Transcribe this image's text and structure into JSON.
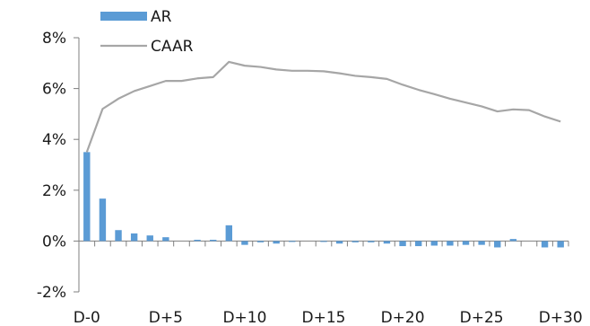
{
  "chart_data": {
    "type": "bar+line",
    "title": "",
    "xlabel": "",
    "ylabel": "",
    "ylim": [
      -0.02,
      0.08
    ],
    "y_ticks": [
      -0.02,
      0,
      0.02,
      0.04,
      0.06,
      0.08
    ],
    "y_tick_labels": [
      "-2%",
      "0%",
      "2%",
      "4%",
      "6%",
      "8%"
    ],
    "x_categories": [
      "D-0",
      "D+1",
      "D+2",
      "D+3",
      "D+4",
      "D+5",
      "D+6",
      "D+7",
      "D+8",
      "D+9",
      "D+10",
      "D+11",
      "D+12",
      "D+13",
      "D+14",
      "D+15",
      "D+16",
      "D+17",
      "D+18",
      "D+19",
      "D+20",
      "D+21",
      "D+22",
      "D+23",
      "D+24",
      "D+25",
      "D+26",
      "D+27",
      "D+28",
      "D+29",
      "D+30"
    ],
    "x_tick_labels": [
      "D-0",
      "D+5",
      "D+10",
      "D+15",
      "D+20",
      "D+25",
      "D+30"
    ],
    "legend_position": "top-left",
    "grid": false,
    "series": [
      {
        "name": "AR",
        "kind": "bar",
        "color": "#5b9bd5",
        "values": [
          0.035,
          0.0167,
          0.0043,
          0.003,
          0.0022,
          0.0015,
          0.0,
          0.0005,
          0.0005,
          0.0062,
          -0.0015,
          -0.0005,
          -0.001,
          -0.0003,
          0.0,
          -0.0002,
          -0.001,
          -0.0005,
          -0.0005,
          -0.001,
          -0.002,
          -0.002,
          -0.0018,
          -0.0018,
          -0.0015,
          -0.0015,
          -0.0025,
          0.0008,
          0.0,
          -0.0025,
          -0.0025
        ]
      },
      {
        "name": "CAAR",
        "kind": "line",
        "color": "#a6a6a6",
        "values": [
          0.035,
          0.052,
          0.056,
          0.059,
          0.061,
          0.063,
          0.063,
          0.064,
          0.0645,
          0.0705,
          0.069,
          0.0685,
          0.0675,
          0.067,
          0.067,
          0.0668,
          0.066,
          0.065,
          0.0645,
          0.0638,
          0.0615,
          0.0595,
          0.0578,
          0.056,
          0.0545,
          0.053,
          0.051,
          0.0518,
          0.0515,
          0.049,
          0.047
        ]
      }
    ]
  }
}
